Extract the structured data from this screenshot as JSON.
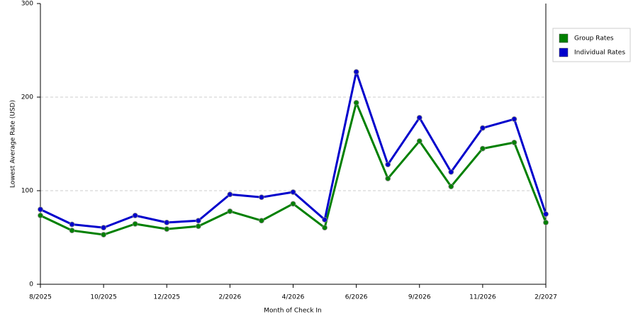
{
  "chart_data": {
    "type": "line",
    "x_label": "Month of Check In",
    "y_label": "Lowest Average Rate (USD)",
    "categories": [
      "8/2025",
      null,
      "10/2025",
      null,
      "12/2025",
      null,
      "2/2026",
      null,
      "4/2026",
      null,
      "6/2026",
      null,
      "9/2026",
      null,
      "11/2026",
      null,
      "2/2027"
    ],
    "series": [
      {
        "name": "Group Rates",
        "color": "#008000",
        "values": [
          73.5,
          57.5,
          53,
          64.5,
          59,
          62,
          78,
          68,
          86,
          60.5,
          194,
          113,
          153,
          104.5,
          145,
          151.5,
          66
        ]
      },
      {
        "name": "Individual Rates",
        "color": "#0000cc",
        "values": [
          80,
          64,
          60.5,
          73.5,
          66,
          68,
          96,
          93,
          98.5,
          69,
          227,
          128,
          178,
          120,
          167,
          176.5,
          75
        ]
      }
    ],
    "ylim": [
      0,
      300
    ],
    "yticks": [
      0,
      100,
      200,
      300
    ],
    "grid": true,
    "legend": "right"
  }
}
